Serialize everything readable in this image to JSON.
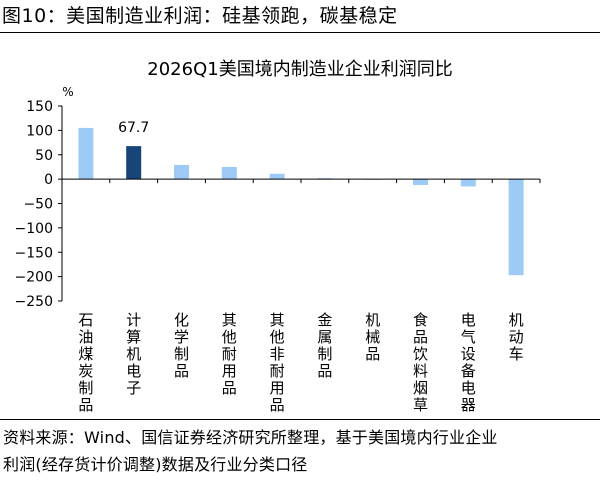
{
  "figure": {
    "title": "图10：美国制造业利润：硅基领跑，碳基稳定",
    "source_line1": "资料来源：Wind、国信证券经济研究所整理，基于美国境内行业企业",
    "source_line2": "利润(经存货计价调整)数据及行业分类口径"
  },
  "chart_data": {
    "type": "bar",
    "title": "2026Q1美国境内制造业企业利润同比",
    "ylabel": "%",
    "ylim": [
      -250,
      150
    ],
    "yticks": [
      150,
      100,
      50,
      0,
      -50,
      -100,
      -150,
      -200,
      -250
    ],
    "ytick_labels": [
      "150",
      "100",
      "50",
      "0",
      "−50",
      "−100",
      "−150",
      "−200",
      "−250"
    ],
    "categories": [
      "石油煤炭制品",
      "计算机电子",
      "化学制品",
      "其他耐用品",
      "其他非耐用品",
      "金属制品",
      "机械品",
      "食品饮料烟草",
      "电气设备电器",
      "机动车"
    ],
    "values": [
      105,
      67.7,
      29,
      25,
      11,
      2,
      0,
      -12,
      -15,
      -197
    ],
    "data_labels": [
      null,
      "67.7",
      null,
      null,
      null,
      null,
      null,
      null,
      null,
      null
    ],
    "colors": {
      "bar": "#9DCBF5",
      "highlight": "#17457A",
      "axis": "#000000"
    },
    "highlight_index": 1,
    "grid": false,
    "legend": "none"
  }
}
